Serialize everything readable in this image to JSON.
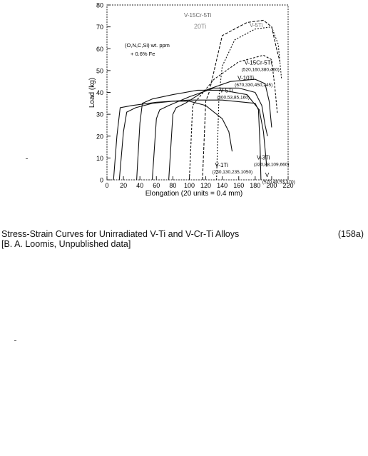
{
  "chart_data": {
    "type": "line",
    "title": "",
    "xlabel": "Elongation (20 units = 0.4 mm)",
    "ylabel": "Load (kg)",
    "xlim": [
      0,
      220
    ],
    "ylim": [
      0,
      80
    ],
    "xticks": [
      "0",
      "20",
      "40",
      "60",
      "80",
      "100",
      "120",
      "140",
      "160",
      "180",
      "200",
      "220"
    ],
    "yticks": [
      "0",
      "10",
      "20",
      "30",
      "40",
      "50",
      "60",
      "70",
      "80"
    ],
    "composition_note": [
      "(O,N,C,Si) wt. ppm",
      "+ 0.6% Fe"
    ],
    "series": [
      {
        "name": "V",
        "label_text": "(570,49,53,370)",
        "x": [
          8,
          12,
          16,
          30,
          60,
          100,
          140,
          180,
          184,
          186,
          187
        ],
        "y": [
          0,
          20,
          33,
          34,
          35.5,
          36.5,
          36.5,
          35,
          32,
          15,
          0
        ]
      },
      {
        "name": "V-1Ti",
        "label_text": "(230,130,235,1050)",
        "x": [
          15,
          20,
          24,
          35,
          55,
          80,
          100,
          120,
          140,
          148,
          152
        ],
        "y": [
          0,
          22,
          31,
          33,
          35,
          36,
          36,
          34,
          28,
          22,
          13
        ]
      },
      {
        "name": "V-3Ti",
        "label_text": "(320,88,109,660)",
        "x": [
          36,
          40,
          43,
          55,
          80,
          110,
          140,
          170,
          185,
          190,
          194
        ],
        "y": [
          0,
          26,
          35,
          37,
          39,
          41,
          41,
          39,
          32,
          22,
          6
        ]
      },
      {
        "name": "V-5Ti",
        "label_text": "(300,53,85,160)",
        "x": [
          55,
          60,
          64,
          75,
          100,
          130,
          160,
          180,
          188,
          192,
          195
        ],
        "y": [
          0,
          28,
          32,
          34,
          38,
          42,
          42,
          40,
          34,
          25,
          20
        ]
      },
      {
        "name": "V-10Ti",
        "label_text": "(670,330,450,245)",
        "x": [
          75,
          80,
          84,
          95,
          120,
          150,
          180,
          192,
          197,
          200
        ],
        "y": [
          0,
          30,
          33,
          35,
          41,
          45,
          46,
          44,
          36,
          24
        ]
      },
      {
        "name": "V-15Cr-5Ti",
        "label_text": "(520,160,380,460)",
        "x": [
          100,
          104,
          108,
          130,
          160,
          190,
          200,
          204,
          207
        ],
        "y": [
          0,
          34,
          36,
          46,
          54,
          57,
          55,
          42,
          30
        ]
      },
      {
        "name": "V-15Cr-5Ti (upper)",
        "label_text": "",
        "x": [
          116,
          120,
          124,
          140,
          170,
          190,
          200,
          206,
          210
        ],
        "y": [
          0,
          36,
          40,
          66,
          72,
          73,
          70,
          60,
          54
        ]
      },
      {
        "name": "V-20Ti",
        "label_text": "",
        "x": [
          133,
          136,
          140,
          155,
          180,
          200,
          208,
          212
        ],
        "y": [
          0,
          38,
          52,
          64,
          69,
          70,
          62,
          46
        ]
      }
    ],
    "top_annotations": [
      "V-15Cr-5Ti",
      "20Ti",
      "V-5Ti"
    ]
  },
  "caption": {
    "line1": "Stress-Strain Curves for Unirradiated V-Ti and V-Cr-Ti Alloys",
    "line2": "[B. A. Loomis, Unpublished data]",
    "figure_number": "(158a)"
  }
}
